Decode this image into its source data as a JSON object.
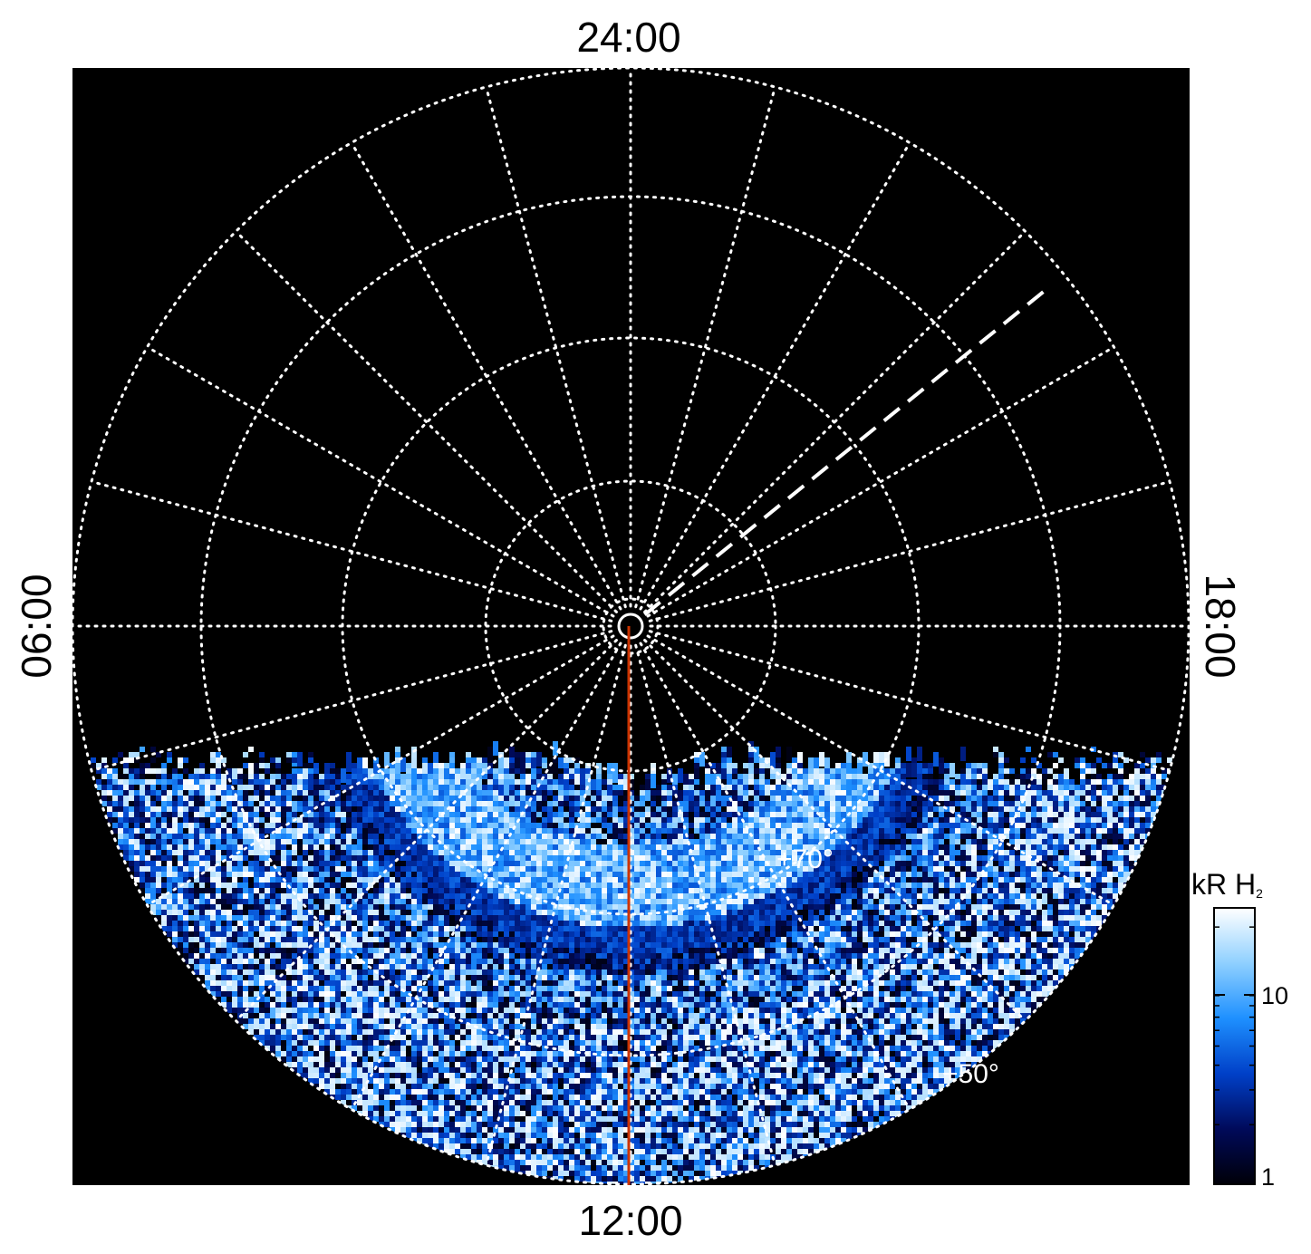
{
  "chart_data": {
    "type": "heatmap",
    "projection": "polar",
    "title": "",
    "local_time_labels": {
      "top": "24:00",
      "bottom": "12:00",
      "left": "06:00",
      "right": "18:00"
    },
    "latitude_labels": [
      "+70°",
      "+50°"
    ],
    "latitude_circles": [
      85,
      80,
      70,
      60,
      50
    ],
    "meridian_spacing_hours": 1,
    "data_coverage": "dayside, approx. 07:00 to 17:00 local time",
    "colorbar": {
      "label": "kR H",
      "label_subscript": "2",
      "scale": "log",
      "range": [
        1,
        25
      ],
      "tick_labels": [
        "1",
        "10"
      ],
      "colormap": [
        "#000008",
        "#000a5a",
        "#0040c8",
        "#1e90ff",
        "#8fd0ff",
        "#ffffff"
      ]
    },
    "reference_lines": [
      {
        "style": "solid",
        "color": "#cc3300",
        "direction": "pole to 12:00 local time"
      },
      {
        "style": "dashed",
        "color": "#ffffff",
        "direction": "pole toward about 20:30 local time"
      }
    ],
    "grid": true
  }
}
